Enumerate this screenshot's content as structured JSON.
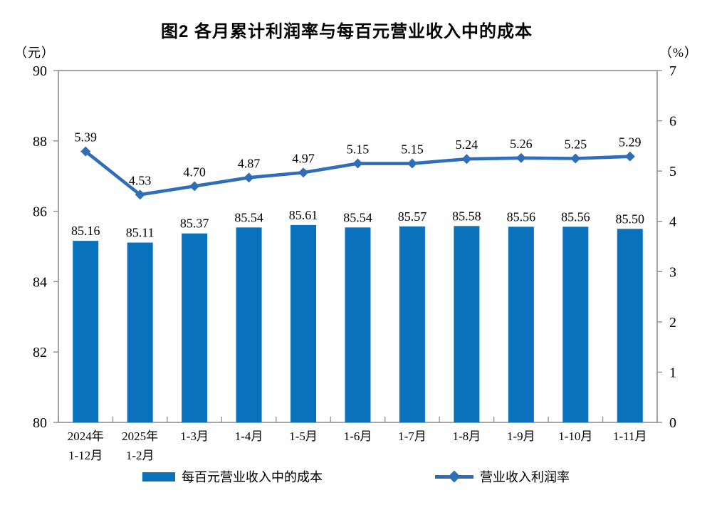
{
  "chart_data": {
    "type": "bar-line-combo",
    "title": "图2  各月累计利润率与每百元营业收入中的成本",
    "categories": [
      [
        "2024年",
        "1-12月"
      ],
      [
        "2025年",
        "1-2月"
      ],
      [
        "1-3月"
      ],
      [
        "1-4月"
      ],
      [
        "1-5月"
      ],
      [
        "1-6月"
      ],
      [
        "1-7月"
      ],
      [
        "1-8月"
      ],
      [
        "1-9月"
      ],
      [
        "1-10月"
      ],
      [
        "1-11月"
      ]
    ],
    "series": [
      {
        "name": "每百元营业收入中的成本",
        "type": "bar",
        "axis": "left",
        "color": "#0a72bc",
        "values": [
          85.16,
          85.11,
          85.37,
          85.54,
          85.61,
          85.54,
          85.57,
          85.58,
          85.56,
          85.56,
          85.5
        ]
      },
      {
        "name": "营业收入利润率",
        "type": "line",
        "axis": "right",
        "color": "#2f6eb6",
        "values": [
          5.39,
          4.53,
          4.7,
          4.87,
          4.97,
          5.15,
          5.15,
          5.24,
          5.26,
          5.25,
          5.29
        ]
      }
    ],
    "left_axis": {
      "unit_label": "（元）",
      "min": 80,
      "max": 90,
      "ticks": [
        80,
        82,
        84,
        86,
        88,
        90
      ]
    },
    "right_axis": {
      "unit_label": "（%）",
      "min": 0,
      "max": 7,
      "ticks": [
        0,
        1,
        2,
        3,
        4,
        5,
        6,
        7
      ]
    },
    "legend_position": "bottom",
    "grid": false,
    "frame_color": "#8f8f8f",
    "text_color": "#000000"
  }
}
